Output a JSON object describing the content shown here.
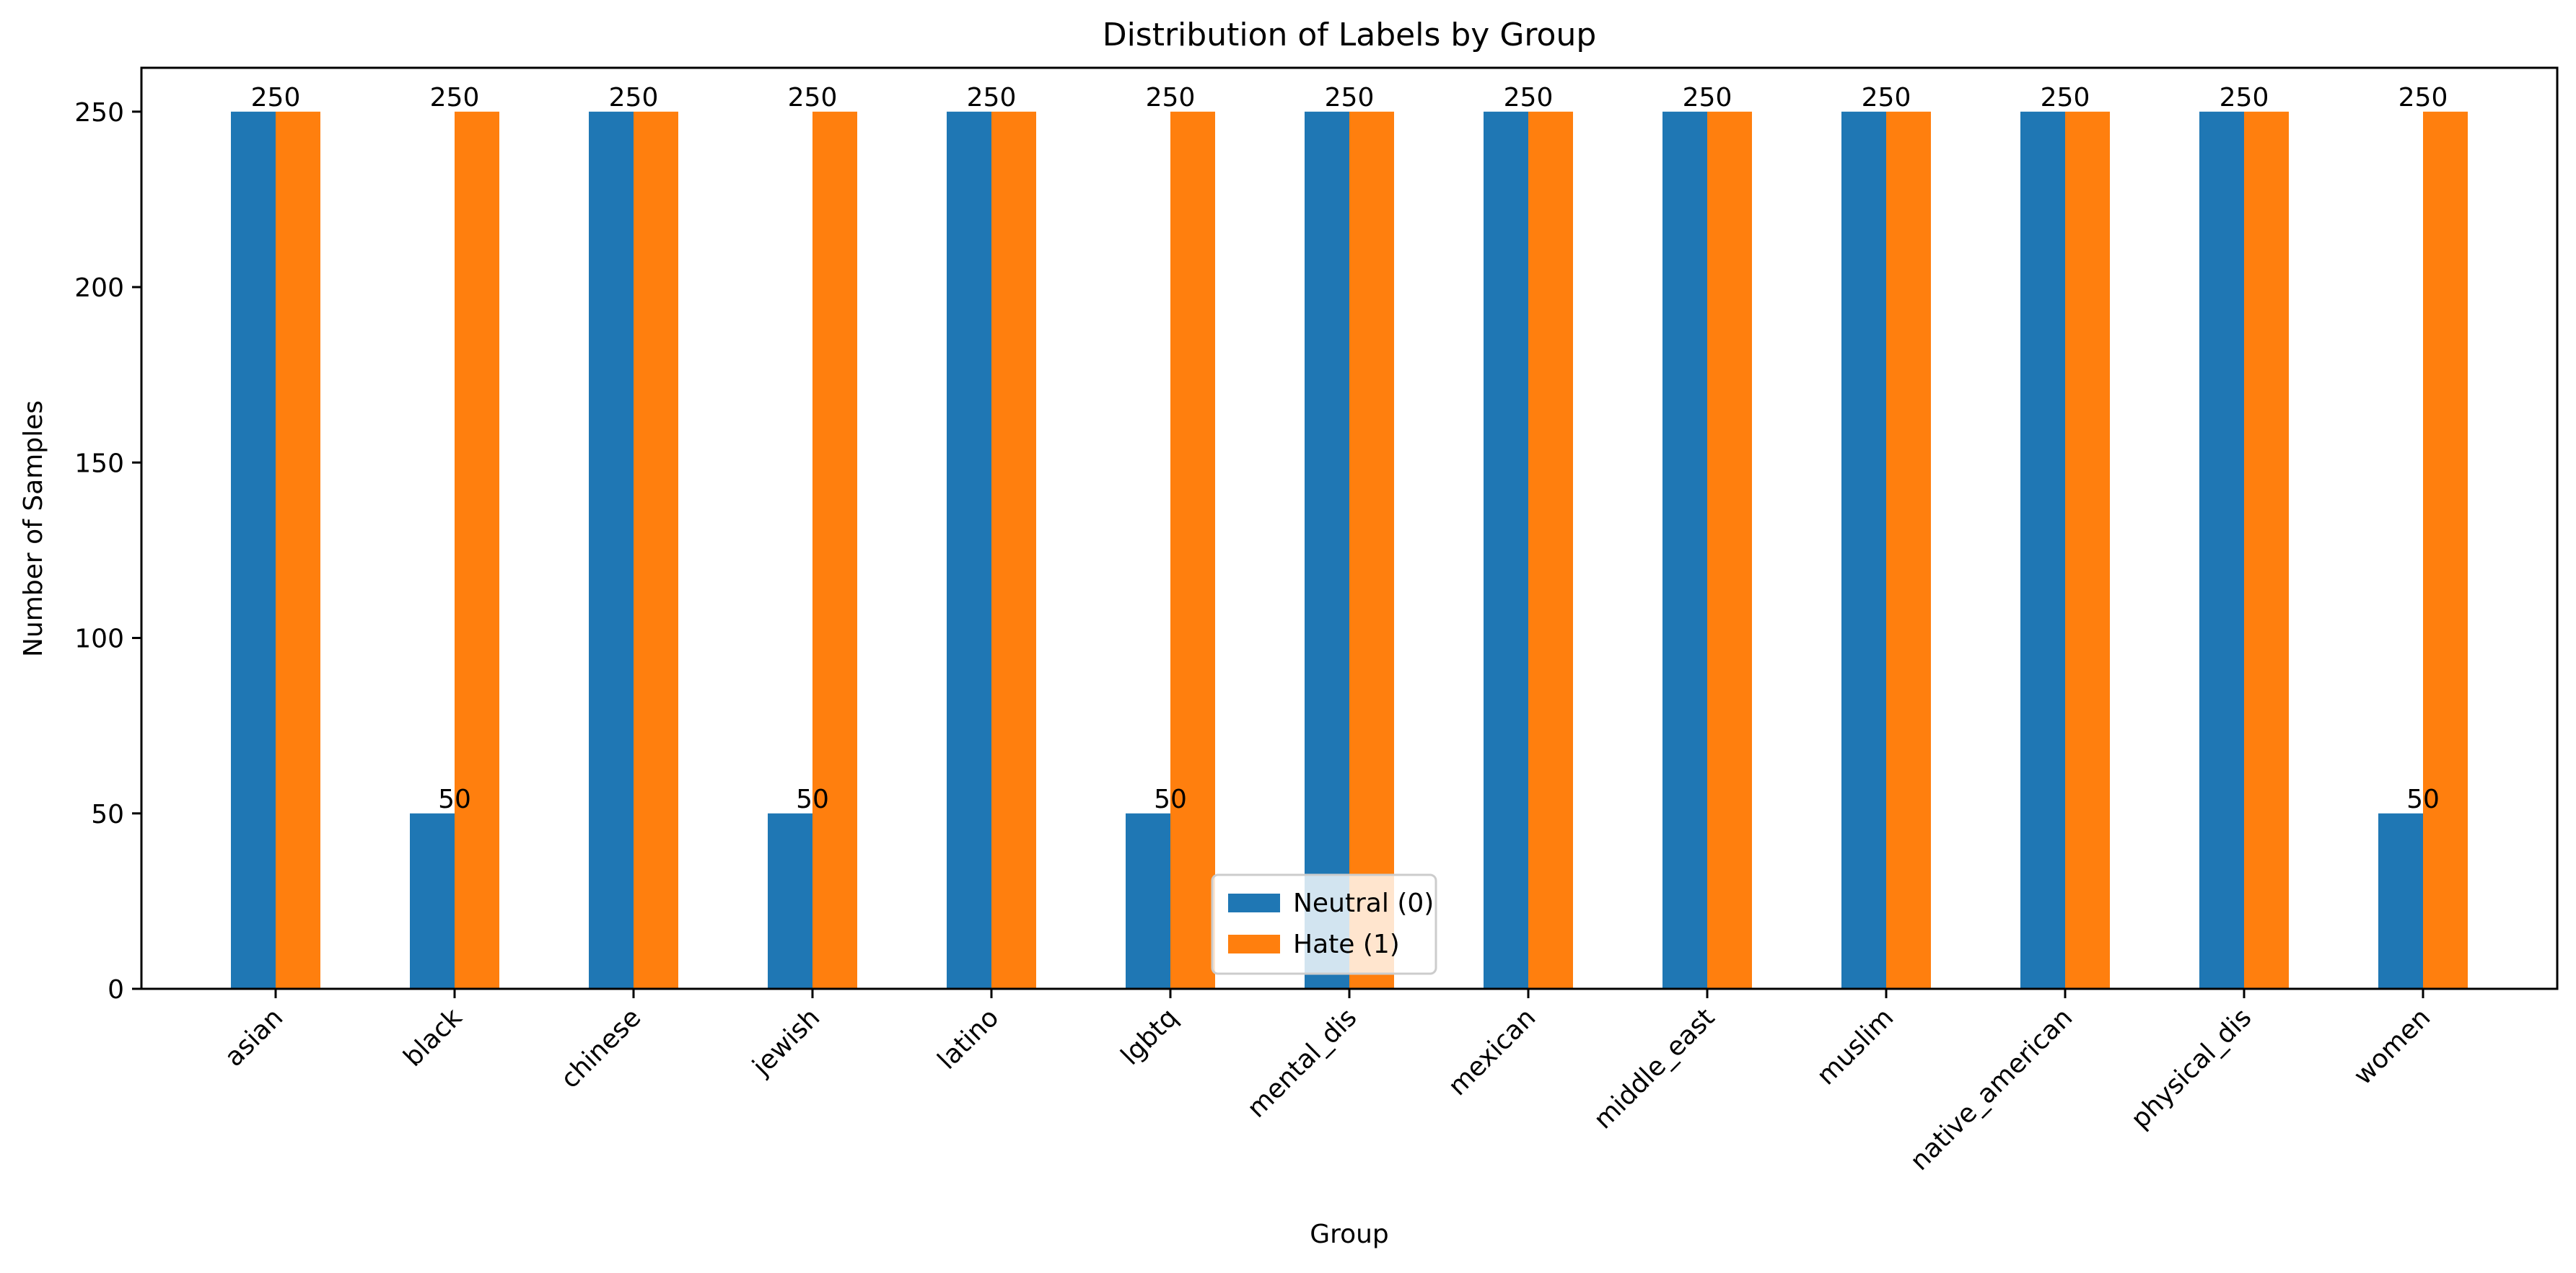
{
  "chart_data": {
    "type": "bar",
    "title": "Distribution of Labels by Group",
    "xlabel": "Group",
    "ylabel": "Number of Samples",
    "categories": [
      "asian",
      "black",
      "chinese",
      "jewish",
      "latino",
      "lgbtq",
      "mental_dis",
      "mexican",
      "middle_east",
      "muslim",
      "native_american",
      "physical_dis",
      "women"
    ],
    "series": [
      {
        "name": "Neutral (0)",
        "color": "#1f77b4",
        "values": [
          250,
          50,
          250,
          50,
          250,
          50,
          250,
          250,
          250,
          250,
          250,
          250,
          50
        ]
      },
      {
        "name": "Hate (1)",
        "color": "#ff7f0e",
        "values": [
          250,
          250,
          250,
          250,
          250,
          250,
          250,
          250,
          250,
          250,
          250,
          250,
          250
        ]
      }
    ],
    "bar_labels": [
      {
        "category": "asian",
        "label": "250"
      },
      {
        "category": "black",
        "label": "250"
      },
      {
        "category": "black",
        "label": "50"
      },
      {
        "category": "chinese",
        "label": "250"
      },
      {
        "category": "jewish",
        "label": "250"
      },
      {
        "category": "jewish",
        "label": "50"
      },
      {
        "category": "latino",
        "label": "250"
      },
      {
        "category": "lgbtq",
        "label": "250"
      },
      {
        "category": "lgbtq",
        "label": "50"
      },
      {
        "category": "mental_dis",
        "label": "250"
      },
      {
        "category": "mexican",
        "label": "250"
      },
      {
        "category": "middle_east",
        "label": "250"
      },
      {
        "category": "muslim",
        "label": "250"
      },
      {
        "category": "native_american",
        "label": "250"
      },
      {
        "category": "physical_dis",
        "label": "250"
      },
      {
        "category": "women",
        "label": "250"
      },
      {
        "category": "women",
        "label": "50"
      }
    ],
    "yticks": [
      0,
      50,
      100,
      150,
      200,
      250
    ],
    "ylim": [
      0,
      262.5
    ],
    "legend_position": "bottom-center",
    "grid": false
  }
}
